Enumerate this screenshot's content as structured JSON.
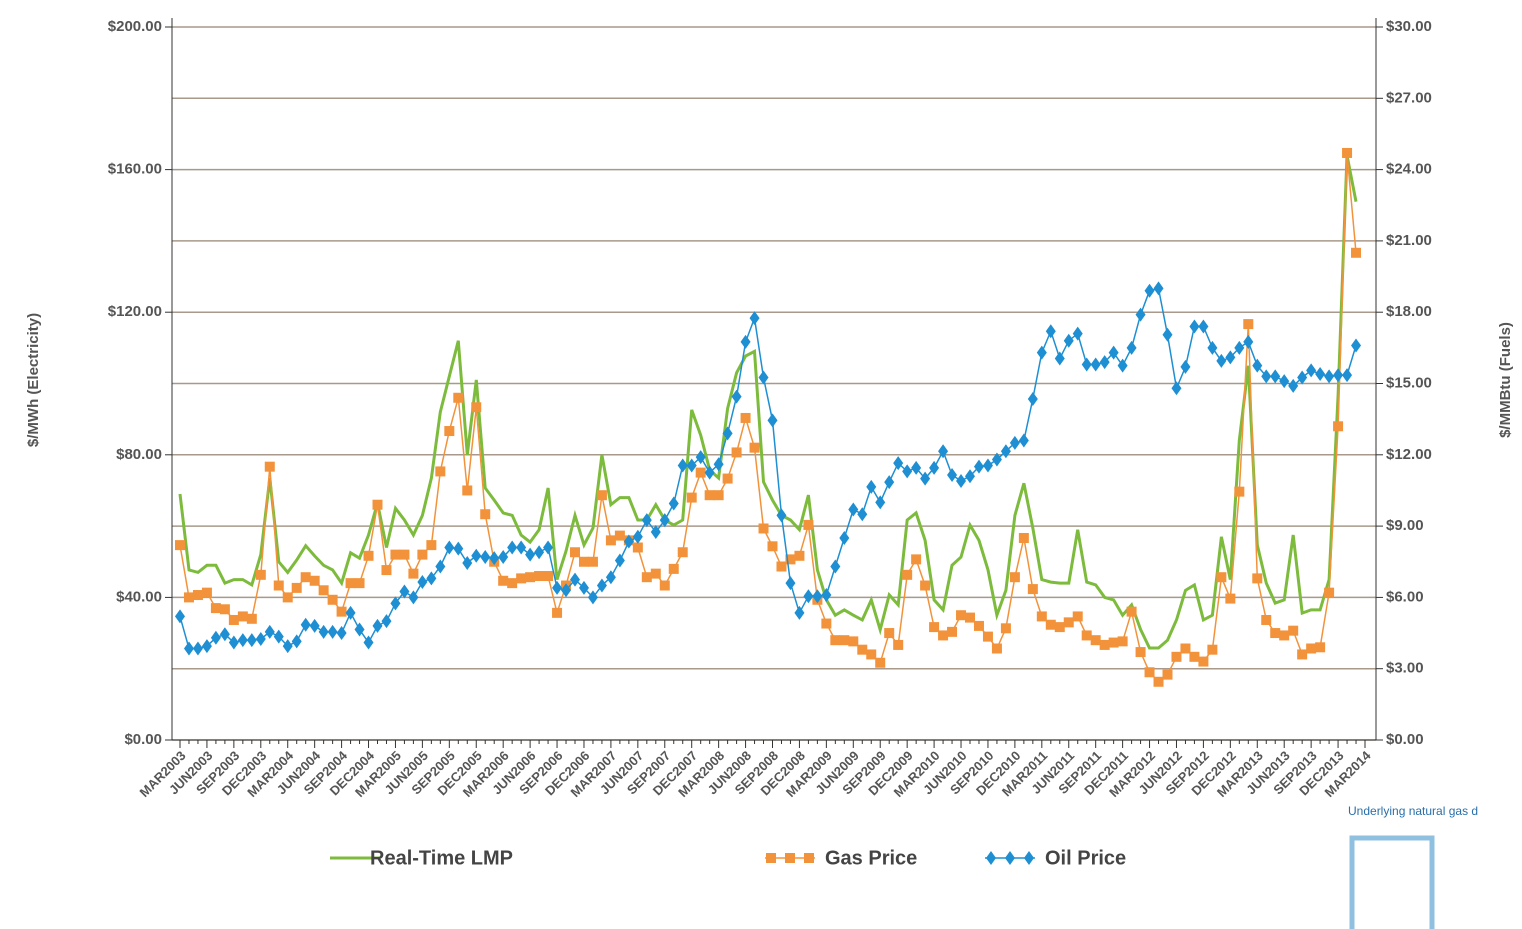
{
  "chart_data": {
    "type": "line",
    "y_label": "$/MWh (Electricity)",
    "y2_label": "$/MMBtu (Fuels)",
    "note": "Underlying natural gas d",
    "legend": "bottom",
    "grid": true,
    "categories": [
      "MAR2003",
      null,
      null,
      "JUN2003",
      null,
      null,
      "SEP2003",
      null,
      null,
      "DEC2003",
      null,
      null,
      "MAR2004",
      null,
      null,
      "JUN2004",
      null,
      null,
      "SEP2004",
      null,
      null,
      "DEC2004",
      null,
      null,
      "MAR2005",
      null,
      null,
      "JUN2005",
      null,
      null,
      "SEP2005",
      null,
      null,
      "DEC2005",
      null,
      null,
      "MAR2006",
      null,
      null,
      "JUN2006",
      null,
      null,
      "SEP2006",
      null,
      null,
      "DEC2006",
      null,
      null,
      "MAR2007",
      null,
      null,
      "JUN2007",
      null,
      null,
      "SEP2007",
      null,
      null,
      "DEC2007",
      null,
      null,
      "MAR2008",
      null,
      null,
      "JUN2008",
      null,
      null,
      "SEP2008",
      null,
      null,
      "DEC2008",
      null,
      null,
      "MAR2009",
      null,
      null,
      "JUN2009",
      null,
      null,
      "SEP2009",
      null,
      null,
      "DEC2009",
      null,
      null,
      "MAR2010",
      null,
      null,
      "JUN2010",
      null,
      null,
      "SEP2010",
      null,
      null,
      "DEC2010",
      null,
      null,
      "MAR2011",
      null,
      null,
      "JUN2011",
      null,
      null,
      "SEP2011",
      null,
      null,
      "DEC2011",
      null,
      null,
      "MAR2012",
      null,
      null,
      "JUN2012",
      null,
      null,
      "SEP2012",
      null,
      null,
      "DEC2012",
      null,
      null,
      "MAR2013",
      null,
      null,
      "JUN2013",
      null,
      null,
      "SEP2013",
      null,
      null,
      "DEC2013",
      null,
      null,
      "MAR2014"
    ],
    "ylim": [
      0,
      200
    ],
    "yticks": [
      {
        "value": 0,
        "label": "$0.00"
      },
      {
        "value": 40,
        "label": "$40.00"
      },
      {
        "value": 80,
        "label": "$80.00"
      },
      {
        "value": 120,
        "label": "$120.00"
      },
      {
        "value": 160,
        "label": "$160.00"
      },
      {
        "value": 200,
        "label": "$200.00"
      }
    ],
    "y2lim": [
      0,
      30
    ],
    "y2ticks": [
      {
        "value": 0,
        "label": "$0.00"
      },
      {
        "value": 3,
        "label": "$3.00"
      },
      {
        "value": 6,
        "label": "$6.00"
      },
      {
        "value": 9,
        "label": "$9.00"
      },
      {
        "value": 12,
        "label": "$12.00"
      },
      {
        "value": 15,
        "label": "$15.00"
      },
      {
        "value": 18,
        "label": "$18.00"
      },
      {
        "value": 21,
        "label": "$21.00"
      },
      {
        "value": 24,
        "label": "$24.00"
      },
      {
        "value": 27,
        "label": "$27.00"
      },
      {
        "value": 30,
        "label": "$30.00"
      }
    ],
    "series": [
      {
        "name": "Real-Time LMP",
        "color": "#7dbb3c",
        "marker": "none",
        "values": [
          69,
          47.7,
          47,
          49,
          49,
          44,
          45,
          45,
          43.5,
          52,
          73.5,
          50,
          47,
          50.5,
          54.5,
          51.6,
          49,
          47.7,
          44,
          52.5,
          51,
          57.5,
          66.5,
          54,
          65,
          61.7,
          57.5,
          63,
          73.5,
          92,
          102,
          112,
          80,
          101,
          70.7,
          67.3,
          63.7,
          63,
          57.5,
          55.5,
          59,
          70.7,
          45,
          53,
          63,
          54.7,
          59.5,
          80,
          66,
          68,
          68,
          61.7,
          61.7,
          66,
          61.7,
          60.3,
          61.7,
          92.6,
          85.5,
          75.7,
          73.5,
          93,
          103,
          107.7,
          109,
          72.4,
          67.3,
          63,
          61.7,
          59,
          68.7,
          47.7,
          39.3,
          35,
          36.5,
          35,
          33.7,
          39.3,
          30.9,
          40.7,
          37.9,
          61.7,
          63.7,
          56,
          39.3,
          36.5,
          49,
          51.3,
          60.3,
          56,
          47.7,
          35,
          42,
          63,
          72,
          59.5,
          45,
          44.3,
          44,
          44,
          59,
          44.3,
          43.5,
          40,
          39.3,
          35,
          37.9,
          31,
          25.8,
          25.8,
          28,
          33.7,
          42,
          43.5,
          33.7,
          35,
          57,
          45,
          84,
          105,
          54.7,
          44,
          38.4,
          39.3,
          57.5,
          35.6,
          36.5,
          36.5,
          45,
          96.8,
          164,
          151,
          null
        ]
      },
      {
        "name": "Gas Price",
        "color": "#f2933b",
        "marker": "square",
        "axis": "y2",
        "values": [
          8.2,
          6.0,
          6.1,
          6.2,
          5.55,
          5.5,
          5.05,
          5.2,
          5.1,
          6.95,
          11.5,
          6.5,
          6.0,
          6.4,
          6.85,
          6.7,
          6.3,
          5.9,
          5.4,
          6.6,
          6.6,
          7.75,
          9.9,
          7.15,
          7.8,
          7.8,
          7.0,
          7.8,
          8.2,
          11.3,
          13.0,
          14.4,
          10.5,
          14.0,
          9.5,
          7.5,
          6.7,
          6.6,
          6.8,
          6.85,
          6.9,
          6.9,
          5.35,
          6.5,
          7.9,
          7.5,
          7.5,
          10.3,
          8.4,
          8.6,
          8.4,
          8.1,
          6.85,
          7.0,
          6.5,
          7.2,
          7.9,
          10.2,
          11.25,
          10.3,
          10.3,
          11.0,
          12.1,
          13.55,
          12.3,
          8.9,
          8.15,
          7.3,
          7.6,
          7.75,
          9.05,
          5.9,
          4.9,
          4.2,
          4.2,
          4.15,
          3.8,
          3.6,
          3.25,
          4.5,
          4.0,
          6.95,
          7.6,
          6.5,
          4.75,
          4.4,
          4.55,
          5.25,
          5.15,
          4.8,
          4.35,
          3.85,
          4.7,
          6.85,
          8.5,
          6.35,
          5.2,
          4.85,
          4.75,
          4.95,
          5.2,
          4.4,
          4.2,
          4.0,
          4.1,
          4.15,
          5.4,
          3.7,
          2.85,
          2.45,
          2.75,
          3.5,
          3.85,
          3.5,
          3.3,
          3.8,
          6.85,
          5.95,
          10.45,
          17.5,
          6.8,
          5.05,
          4.5,
          4.4,
          4.6,
          3.6,
          3.85,
          3.9,
          6.2,
          13.2,
          24.7,
          20.5,
          null
        ]
      },
      {
        "name": "Oil Price",
        "color": "#1e8fd2",
        "marker": "diamond",
        "axis": "y2",
        "values": [
          5.2,
          3.85,
          3.85,
          3.95,
          4.3,
          4.45,
          4.1,
          4.2,
          4.2,
          4.25,
          4.55,
          4.35,
          3.95,
          4.15,
          4.85,
          4.8,
          4.55,
          4.55,
          4.5,
          5.35,
          4.65,
          4.1,
          4.8,
          5.0,
          5.75,
          6.25,
          6.0,
          6.65,
          6.8,
          7.3,
          8.1,
          8.05,
          7.45,
          7.75,
          7.7,
          7.65,
          7.7,
          8.1,
          8.1,
          7.8,
          7.9,
          8.1,
          6.4,
          6.3,
          6.75,
          6.4,
          6.0,
          6.5,
          6.85,
          7.55,
          8.35,
          8.55,
          9.25,
          8.75,
          9.25,
          9.95,
          11.55,
          11.55,
          11.9,
          11.25,
          11.6,
          12.9,
          14.45,
          16.75,
          17.75,
          15.25,
          13.45,
          9.45,
          6.6,
          5.35,
          6.05,
          6.05,
          6.1,
          7.3,
          8.5,
          9.7,
          9.5,
          10.65,
          10.0,
          10.85,
          11.65,
          11.3,
          11.45,
          11.0,
          11.45,
          12.15,
          11.15,
          10.9,
          11.1,
          11.5,
          11.55,
          11.8,
          12.15,
          12.5,
          12.6,
          14.35,
          16.3,
          17.2,
          16.05,
          16.8,
          17.1,
          15.8,
          15.8,
          15.9,
          16.3,
          15.75,
          16.5,
          17.9,
          18.9,
          19.0,
          17.05,
          14.8,
          15.7,
          17.4,
          17.4,
          16.5,
          15.95,
          16.1,
          16.5,
          16.75,
          15.75,
          15.3,
          15.3,
          15.1,
          14.9,
          15.25,
          15.55,
          15.4,
          15.3,
          15.35,
          15.35,
          16.6,
          null
        ]
      }
    ]
  }
}
